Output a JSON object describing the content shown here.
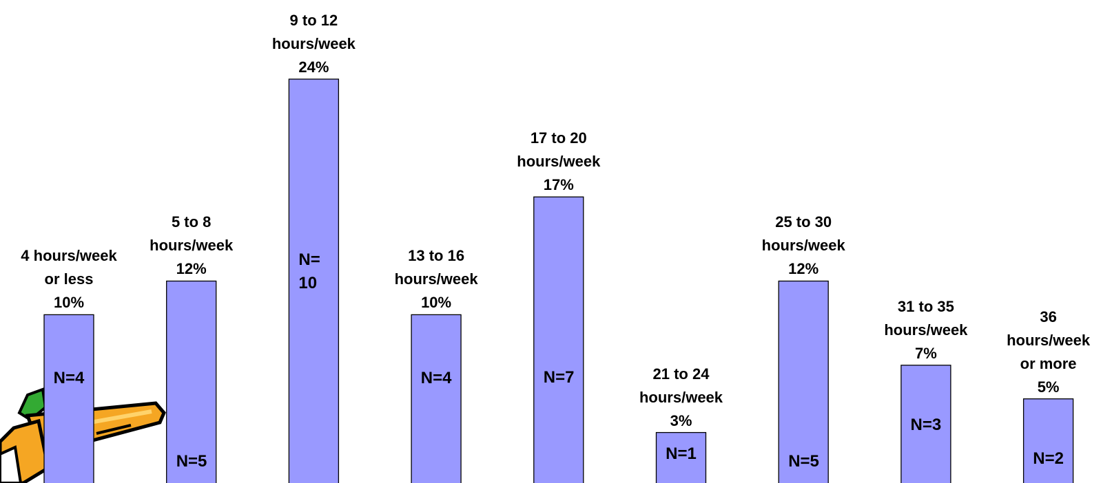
{
  "chart_data": {
    "type": "bar",
    "categories": [
      "4 hours/week or less",
      "5 to 8 hours/week",
      "9 to 12 hours/week",
      "13 to 16 hours/week",
      "17 to 20 hours/week",
      "21 to 24 hours/week",
      "25 to 30 hours/week",
      "31 to 35 hours/week",
      "36 hours/week or more"
    ],
    "category_label_lines": [
      [
        "4 hours/week",
        "or less"
      ],
      [
        "5 to 8",
        "hours/week"
      ],
      [
        "9 to 12",
        "hours/week"
      ],
      [
        "13 to 16",
        "hours/week"
      ],
      [
        "17 to 20",
        "hours/week"
      ],
      [
        "21 to 24",
        "hours/week"
      ],
      [
        "25 to 30",
        "hours/week"
      ],
      [
        "31 to 35",
        "hours/week"
      ],
      [
        "36",
        "hours/week",
        "or more"
      ]
    ],
    "values": [
      10,
      12,
      24,
      10,
      17,
      3,
      12,
      7,
      5
    ],
    "percent_labels": [
      "10%",
      "12%",
      "24%",
      "10%",
      "17%",
      "3%",
      "12%",
      "7%",
      "5%"
    ],
    "counts": [
      4,
      5,
      10,
      4,
      7,
      1,
      5,
      3,
      2
    ],
    "count_labels": [
      "N=4",
      "N=5",
      "N= 10",
      "N=4",
      "N=7",
      "N=1",
      "N=5",
      "N=3",
      "N=2"
    ],
    "bar_color": "#9999ff",
    "grid": false,
    "legend": "none",
    "decoration": "pencil-clipart"
  }
}
